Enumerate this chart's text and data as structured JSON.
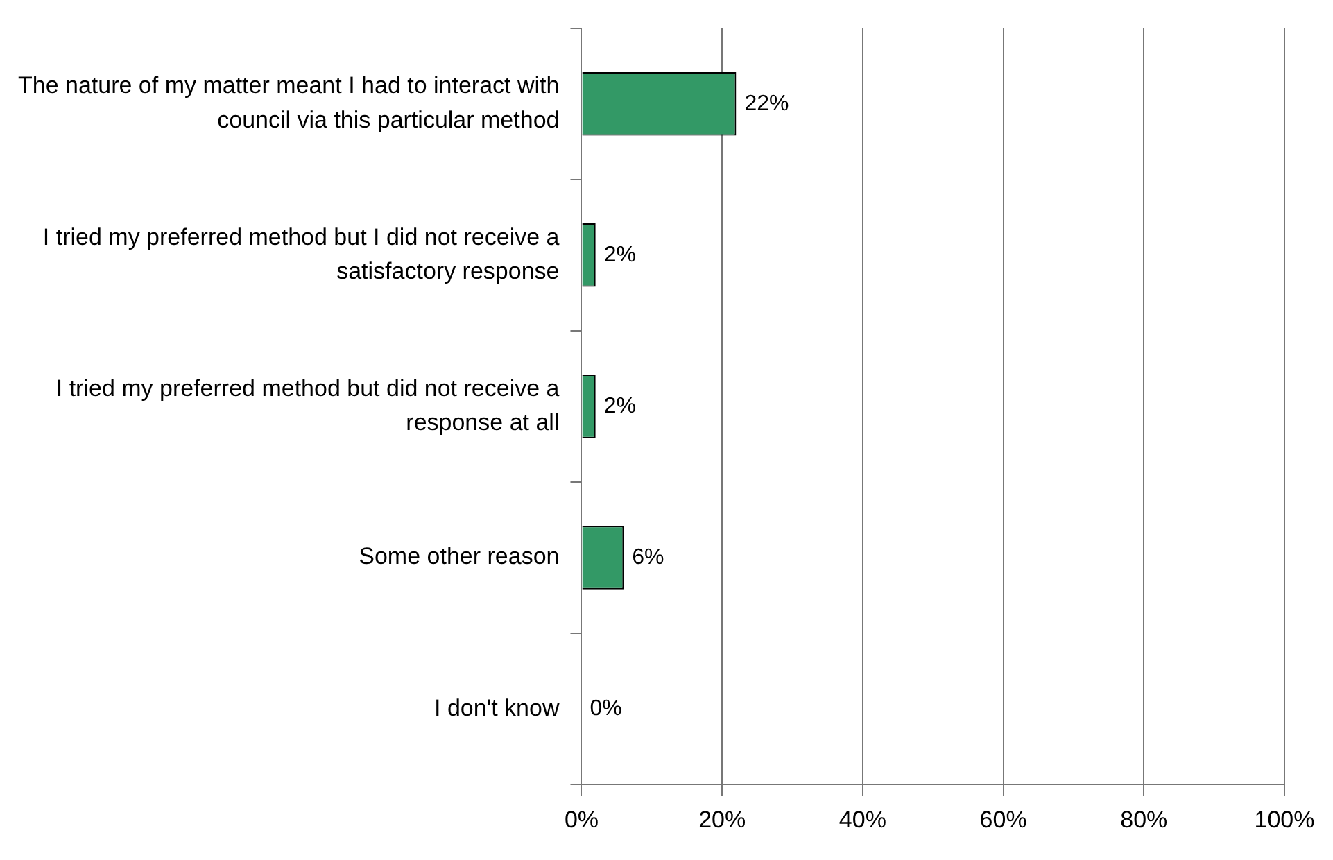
{
  "chart_data": {
    "type": "bar",
    "orientation": "horizontal",
    "categories": [
      "The nature of my matter meant I had to interact with council via this particular method",
      "I tried my preferred method but I did not receive a satisfactory response",
      "I tried my preferred method but did not receive a response at all",
      "Some other reason",
      "I don't know"
    ],
    "values": [
      22,
      2,
      2,
      6,
      0
    ],
    "value_labels": [
      "22%",
      "2%",
      "2%",
      "6%",
      "0%"
    ],
    "color": "#339966",
    "xlim": [
      0,
      100
    ],
    "xticks": [
      {
        "value": 0,
        "label": "0%"
      },
      {
        "value": 20,
        "label": "20%"
      },
      {
        "value": 40,
        "label": "40%"
      },
      {
        "value": 60,
        "label": "60%"
      },
      {
        "value": 80,
        "label": "80%"
      },
      {
        "value": 100,
        "label": "100%"
      }
    ],
    "grid": "x",
    "legend": false
  }
}
